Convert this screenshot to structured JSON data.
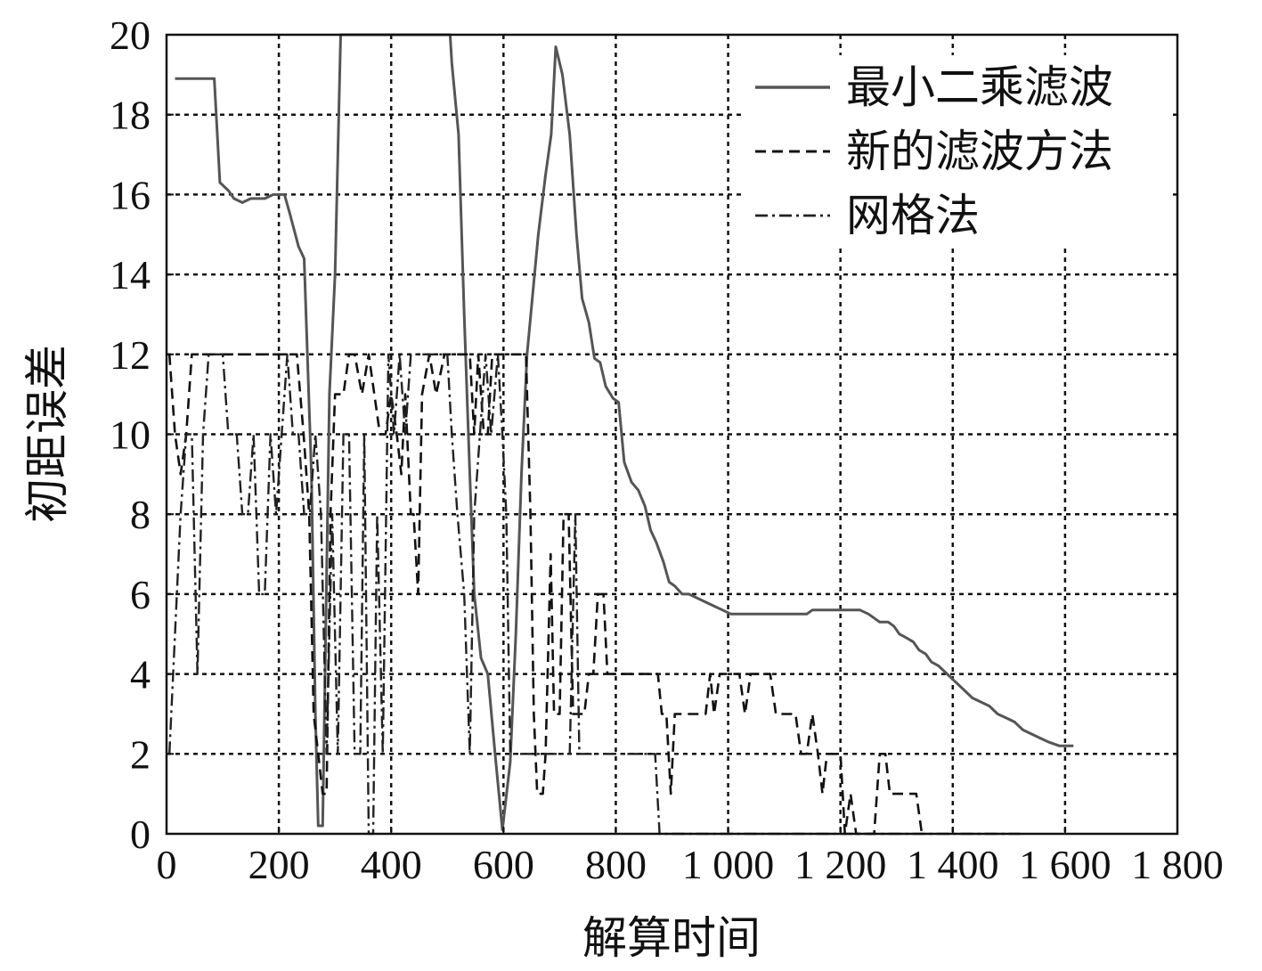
{
  "chart_data": {
    "type": "line",
    "xlabel": "解算时间",
    "ylabel": "初距误差",
    "xlim": [
      0,
      1800
    ],
    "ylim": [
      0,
      20
    ],
    "grid": true,
    "legend_position": "top-right",
    "x_ticks": [
      {
        "value": 0,
        "label": "0"
      },
      {
        "value": 200,
        "label": "200"
      },
      {
        "value": 400,
        "label": "400"
      },
      {
        "value": 600,
        "label": "600"
      },
      {
        "value": 800,
        "label": "800"
      },
      {
        "value": 1000,
        "label": "1 000"
      },
      {
        "value": 1200,
        "label": "1 200"
      },
      {
        "value": 1400,
        "label": "1 400"
      },
      {
        "value": 1600,
        "label": "1 600"
      },
      {
        "value": 1800,
        "label": "1 800"
      }
    ],
    "y_ticks": [
      {
        "value": 0,
        "label": "0"
      },
      {
        "value": 2,
        "label": "2"
      },
      {
        "value": 4,
        "label": "4"
      },
      {
        "value": 6,
        "label": "6"
      },
      {
        "value": 8,
        "label": "8"
      },
      {
        "value": 10,
        "label": "10"
      },
      {
        "value": 12,
        "label": "12"
      },
      {
        "value": 14,
        "label": "14"
      },
      {
        "value": 16,
        "label": "16"
      },
      {
        "value": 18,
        "label": "18"
      },
      {
        "value": 20,
        "label": "20"
      }
    ],
    "series": [
      {
        "name": "最小二乘滤波",
        "color": "#555555",
        "style": "solid",
        "points": [
          [
            15,
            18.9
          ],
          [
            85,
            18.9
          ],
          [
            95,
            16.3
          ],
          [
            110,
            16.1
          ],
          [
            120,
            15.9
          ],
          [
            135,
            15.8
          ],
          [
            150,
            15.9
          ],
          [
            175,
            15.9
          ],
          [
            190,
            16.0
          ],
          [
            210,
            16.0
          ],
          [
            220,
            15.5
          ],
          [
            235,
            14.7
          ],
          [
            245,
            14.4
          ],
          [
            258,
            9.0
          ],
          [
            265,
            3.0
          ],
          [
            270,
            0.2
          ],
          [
            278,
            0.2
          ],
          [
            290,
            11.0
          ],
          [
            300,
            14.0
          ],
          [
            310,
            20.5
          ],
          [
            505,
            20.5
          ],
          [
            508,
            19.3
          ],
          [
            520,
            17.5
          ],
          [
            530,
            13.0
          ],
          [
            540,
            9.0
          ],
          [
            548,
            6.0
          ],
          [
            560,
            4.4
          ],
          [
            572,
            4.0
          ],
          [
            585,
            2.0
          ],
          [
            598,
            0.1
          ],
          [
            612,
            1.8
          ],
          [
            622,
            5.0
          ],
          [
            632,
            9.0
          ],
          [
            642,
            12.0
          ],
          [
            652,
            13.5
          ],
          [
            662,
            15.0
          ],
          [
            675,
            16.5
          ],
          [
            685,
            17.5
          ],
          [
            693,
            19.7
          ],
          [
            705,
            19.0
          ],
          [
            718,
            17.5
          ],
          [
            730,
            15.0
          ],
          [
            740,
            13.4
          ],
          [
            752,
            12.8
          ],
          [
            762,
            11.9
          ],
          [
            772,
            11.8
          ],
          [
            782,
            11.2
          ],
          [
            795,
            10.9
          ],
          [
            805,
            10.8
          ],
          [
            815,
            9.3
          ],
          [
            828,
            8.8
          ],
          [
            840,
            8.6
          ],
          [
            852,
            8.2
          ],
          [
            862,
            7.6
          ],
          [
            872,
            7.3
          ],
          [
            885,
            6.8
          ],
          [
            895,
            6.3
          ],
          [
            905,
            6.2
          ],
          [
            918,
            6.0
          ],
          [
            930,
            6.0
          ],
          [
            945,
            5.9
          ],
          [
            960,
            5.8
          ],
          [
            975,
            5.7
          ],
          [
            990,
            5.6
          ],
          [
            1005,
            5.5
          ],
          [
            1020,
            5.5
          ],
          [
            1060,
            5.5
          ],
          [
            1100,
            5.5
          ],
          [
            1140,
            5.5
          ],
          [
            1150,
            5.6
          ],
          [
            1185,
            5.6
          ],
          [
            1220,
            5.6
          ],
          [
            1235,
            5.6
          ],
          [
            1250,
            5.5
          ],
          [
            1260,
            5.4
          ],
          [
            1270,
            5.3
          ],
          [
            1285,
            5.3
          ],
          [
            1295,
            5.2
          ],
          [
            1305,
            5.0
          ],
          [
            1318,
            4.9
          ],
          [
            1330,
            4.8
          ],
          [
            1340,
            4.6
          ],
          [
            1352,
            4.5
          ],
          [
            1362,
            4.3
          ],
          [
            1375,
            4.2
          ],
          [
            1390,
            4.0
          ],
          [
            1405,
            3.8
          ],
          [
            1420,
            3.6
          ],
          [
            1435,
            3.4
          ],
          [
            1450,
            3.3
          ],
          [
            1465,
            3.2
          ],
          [
            1480,
            3.0
          ],
          [
            1495,
            2.9
          ],
          [
            1510,
            2.8
          ],
          [
            1525,
            2.6
          ],
          [
            1540,
            2.5
          ],
          [
            1555,
            2.4
          ],
          [
            1570,
            2.3
          ],
          [
            1590,
            2.2
          ],
          [
            1615,
            2.2
          ]
        ]
      },
      {
        "name": "新的滤波方法",
        "color": "#111111",
        "style": "dashed",
        "points": [
          [
            5,
            12.0
          ],
          [
            15,
            10.0
          ],
          [
            25,
            9.0
          ],
          [
            35,
            10.0
          ],
          [
            45,
            12.0
          ],
          [
            90,
            12.0
          ],
          [
            140,
            12.0
          ],
          [
            200,
            12.0
          ],
          [
            232,
            12.0
          ],
          [
            244,
            10.0
          ],
          [
            254,
            8.0
          ],
          [
            262,
            3.0
          ],
          [
            270,
            2.0
          ],
          [
            278,
            1.0
          ],
          [
            285,
            1.0
          ],
          [
            292,
            8.0
          ],
          [
            300,
            11.0
          ],
          [
            315,
            11.0
          ],
          [
            325,
            12.0
          ],
          [
            335,
            12.0
          ],
          [
            348,
            11.0
          ],
          [
            360,
            12.0
          ],
          [
            370,
            11.0
          ],
          [
            380,
            10.0
          ],
          [
            390,
            10.0
          ],
          [
            400,
            11.0
          ],
          [
            410,
            10.0
          ],
          [
            418,
            9.0
          ],
          [
            425,
            11.0
          ],
          [
            435,
            8.0
          ],
          [
            440,
            8.0
          ],
          [
            448,
            6.0
          ],
          [
            455,
            11.0
          ],
          [
            468,
            12.0
          ],
          [
            480,
            11.0
          ],
          [
            495,
            12.0
          ],
          [
            505,
            12.0
          ],
          [
            540,
            12.0
          ],
          [
            548,
            10.0
          ],
          [
            555,
            12.0
          ],
          [
            565,
            10.0
          ],
          [
            572,
            10.0
          ],
          [
            580,
            12.0
          ],
          [
            592,
            12.0
          ],
          [
            640,
            12.0
          ],
          [
            648,
            8.0
          ],
          [
            654,
            3.0
          ],
          [
            660,
            1.0
          ],
          [
            670,
            1.0
          ],
          [
            675,
            2.0
          ],
          [
            684,
            7.0
          ],
          [
            690,
            3.0
          ],
          [
            700,
            3.0
          ],
          [
            707,
            8.0
          ],
          [
            716,
            8.0
          ],
          [
            724,
            3.0
          ],
          [
            734,
            3.0
          ],
          [
            744,
            3.0
          ],
          [
            752,
            4.0
          ],
          [
            760,
            4.0
          ],
          [
            768,
            6.0
          ],
          [
            778,
            6.0
          ],
          [
            785,
            4.0
          ],
          [
            800,
            4.0
          ],
          [
            875,
            4.0
          ],
          [
            882,
            3.0
          ],
          [
            890,
            3.0
          ],
          [
            898,
            1.0
          ],
          [
            905,
            3.0
          ],
          [
            915,
            3.0
          ],
          [
            960,
            3.0
          ],
          [
            968,
            4.0
          ],
          [
            975,
            3.0
          ],
          [
            985,
            4.0
          ],
          [
            1020,
            4.0
          ],
          [
            1030,
            3.0
          ],
          [
            1040,
            4.0
          ],
          [
            1075,
            4.0
          ],
          [
            1085,
            3.0
          ],
          [
            1120,
            3.0
          ],
          [
            1130,
            2.0
          ],
          [
            1140,
            2.0
          ],
          [
            1150,
            3.0
          ],
          [
            1160,
            2.0
          ],
          [
            1168,
            1.0
          ],
          [
            1176,
            2.0
          ],
          [
            1200,
            2.0
          ],
          [
            1208,
            0.0
          ],
          [
            1218,
            1.0
          ],
          [
            1228,
            0.0
          ],
          [
            1260,
            0.0
          ],
          [
            1270,
            2.0
          ],
          [
            1280,
            2.0
          ],
          [
            1288,
            1.0
          ],
          [
            1300,
            1.0
          ],
          [
            1320,
            1.0
          ],
          [
            1335,
            1.0
          ],
          [
            1345,
            0.0
          ]
        ]
      },
      {
        "name": "网格法",
        "color": "#222222",
        "style": "dashdot",
        "points": [
          [
            5,
            2.0
          ],
          [
            25,
            8.0
          ],
          [
            35,
            10.0
          ],
          [
            45,
            10.0
          ],
          [
            55,
            4.0
          ],
          [
            65,
            10.0
          ],
          [
            75,
            12.0
          ],
          [
            100,
            12.0
          ],
          [
            110,
            10.0
          ],
          [
            125,
            10.0
          ],
          [
            135,
            8.0
          ],
          [
            145,
            8.0
          ],
          [
            155,
            10.0
          ],
          [
            165,
            6.0
          ],
          [
            175,
            6.0
          ],
          [
            185,
            10.0
          ],
          [
            195,
            8.0
          ],
          [
            205,
            10.0
          ],
          [
            215,
            12.0
          ],
          [
            225,
            10.0
          ],
          [
            235,
            10.0
          ],
          [
            245,
            8.0
          ],
          [
            255,
            8.0
          ],
          [
            265,
            10.0
          ],
          [
            275,
            8.0
          ],
          [
            285,
            2.0
          ],
          [
            295,
            8.0
          ],
          [
            305,
            2.0
          ],
          [
            315,
            10.0
          ],
          [
            325,
            10.0
          ],
          [
            335,
            2.0
          ],
          [
            345,
            2.0
          ],
          [
            352,
            10.0
          ],
          [
            360,
            0.0
          ],
          [
            368,
            0.0
          ],
          [
            375,
            8.0
          ],
          [
            385,
            2.0
          ],
          [
            395,
            12.0
          ],
          [
            405,
            10.0
          ],
          [
            415,
            12.0
          ],
          [
            425,
            10.0
          ],
          [
            435,
            12.0
          ],
          [
            460,
            12.0
          ],
          [
            480,
            12.0
          ],
          [
            500,
            12.0
          ],
          [
            508,
            10.0
          ],
          [
            518,
            8.0
          ],
          [
            530,
            6.0
          ],
          [
            540,
            2.0
          ],
          [
            548,
            8.0
          ],
          [
            558,
            10.0
          ],
          [
            568,
            12.0
          ],
          [
            578,
            10.0
          ],
          [
            590,
            12.0
          ],
          [
            598,
            10.0
          ],
          [
            605,
            8.0
          ],
          [
            612,
            2.0
          ],
          [
            620,
            2.0
          ],
          [
            640,
            2.0
          ],
          [
            680,
            2.0
          ],
          [
            700,
            2.0
          ],
          [
            718,
            2.0
          ],
          [
            728,
            8.0
          ],
          [
            735,
            2.0
          ],
          [
            800,
            2.0
          ],
          [
            870,
            2.0
          ],
          [
            878,
            0.0
          ],
          [
            1000,
            0.0
          ],
          [
            1200,
            0.0
          ],
          [
            1400,
            0.0
          ],
          [
            1520,
            0.0
          ]
        ]
      }
    ]
  }
}
